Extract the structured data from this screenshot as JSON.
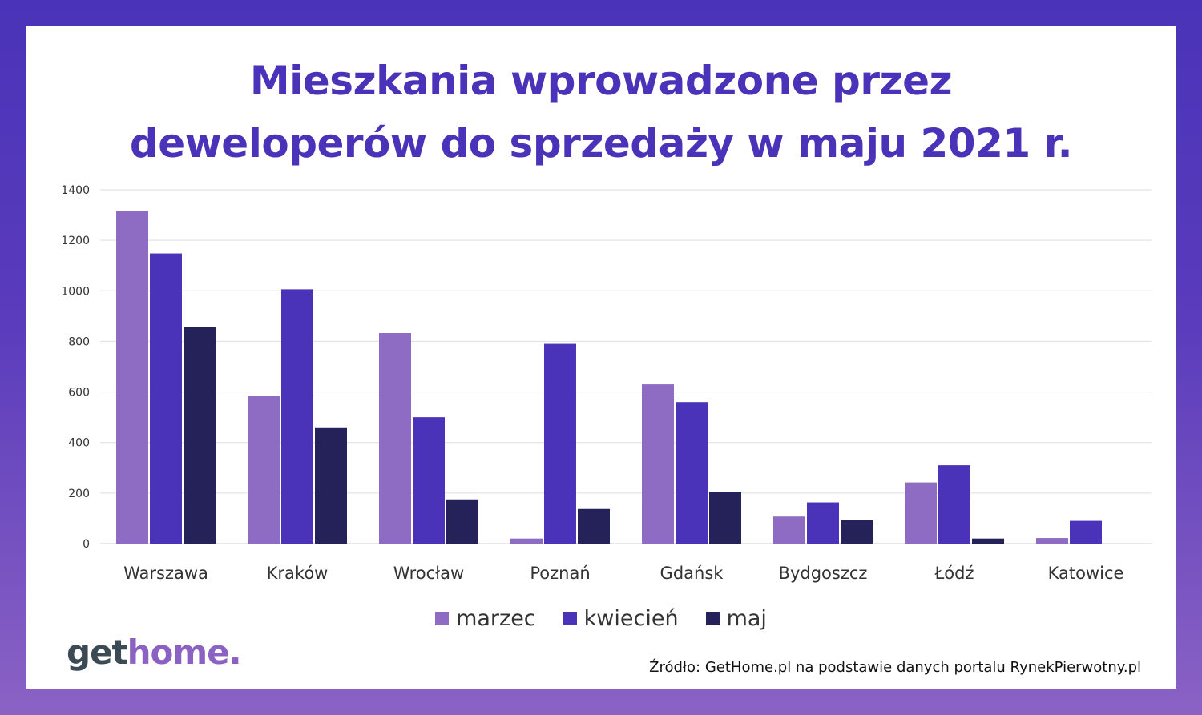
{
  "title": {
    "line1": "Mieszkania wprowadzone przez",
    "line2": "deweloperów do sprzedaży w maju 2021 r."
  },
  "chart_data": {
    "type": "bar",
    "categories": [
      "Warszawa",
      "Kraków",
      "Wrocław",
      "Poznań",
      "Gdańsk",
      "Bydgoszcz",
      "Łódź",
      "Katowice"
    ],
    "series": [
      {
        "name": "marzec",
        "color": "#8e6cc4",
        "values": [
          1315,
          583,
          833,
          20,
          630,
          107,
          242,
          22
        ]
      },
      {
        "name": "kwiecień",
        "color": "#4a33b8",
        "values": [
          1148,
          1006,
          500,
          790,
          560,
          163,
          310,
          90
        ]
      },
      {
        "name": "maj",
        "color": "#25225a",
        "values": [
          857,
          460,
          175,
          137,
          205,
          92,
          20,
          0
        ]
      }
    ],
    "ylim": [
      0,
      1400
    ],
    "yticks": [
      0,
      200,
      400,
      600,
      800,
      1000,
      1200,
      1400
    ],
    "grid": true,
    "legend_position": "bottom"
  },
  "logo": {
    "get": "get",
    "home": "home."
  },
  "source": "Źródło: GetHome.pl na podstawie danych portalu RynekPierwotny.pl"
}
